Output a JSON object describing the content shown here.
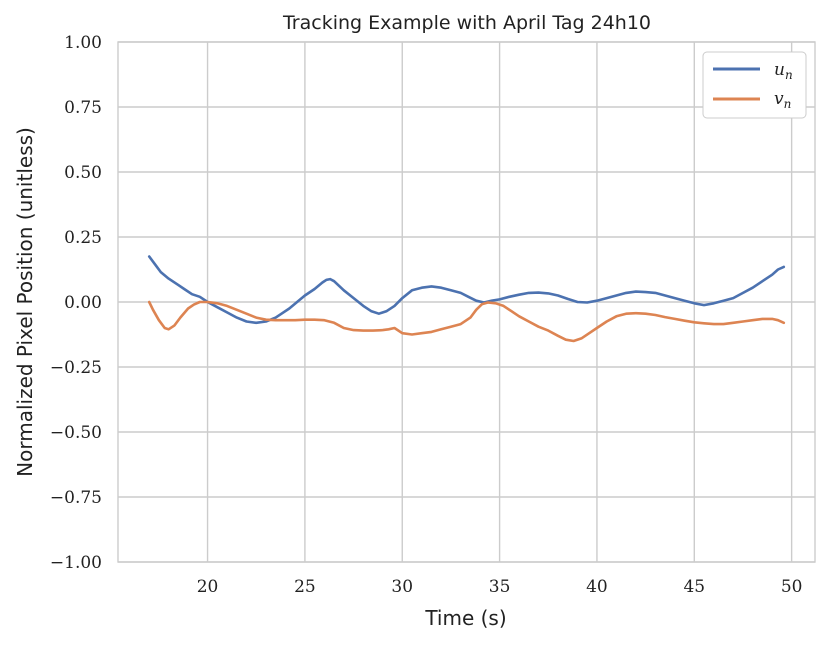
{
  "chart_data": {
    "type": "line",
    "title": "Tracking Example with April Tag 24h10",
    "xlabel": "Time (s)",
    "ylabel": "Normalized Pixel Position (unitless)",
    "xlim": [
      15.4,
      51.2
    ],
    "ylim": [
      -1.0,
      1.0
    ],
    "xticks": [
      20,
      25,
      30,
      35,
      40,
      45,
      50
    ],
    "yticks": [
      -1.0,
      -0.75,
      -0.5,
      -0.25,
      0.0,
      0.25,
      0.5,
      0.75,
      1.0
    ],
    "xtick_labels": [
      "20",
      "25",
      "30",
      "35",
      "40",
      "45",
      "50"
    ],
    "ytick_labels": [
      "−1.00",
      "−0.75",
      "−0.50",
      "−0.25",
      "0.00",
      "0.25",
      "0.50",
      "0.75",
      "1.00"
    ],
    "grid": true,
    "legend_position": "top-right",
    "series": [
      {
        "name": "u",
        "subscript": "n",
        "color": "#4c72b0",
        "x": [
          17.0,
          17.3,
          17.6,
          18.0,
          18.5,
          18.8,
          19.2,
          19.6,
          20.0,
          20.5,
          21.0,
          21.5,
          22.0,
          22.5,
          23.0,
          23.5,
          23.8,
          24.2,
          24.6,
          25.0,
          25.5,
          25.9,
          26.1,
          26.3,
          26.5,
          27.0,
          27.5,
          28.0,
          28.4,
          28.8,
          29.2,
          29.6,
          30.0,
          30.5,
          31.0,
          31.5,
          32.0,
          32.5,
          33.0,
          33.4,
          33.8,
          34.2,
          34.6,
          35.0,
          35.5,
          36.0,
          36.5,
          37.0,
          37.5,
          38.0,
          38.5,
          39.0,
          39.5,
          40.0,
          40.5,
          41.0,
          41.5,
          42.0,
          42.5,
          43.0,
          43.5,
          44.0,
          44.5,
          45.0,
          45.5,
          46.0,
          46.5,
          47.0,
          47.5,
          48.0,
          48.5,
          49.0,
          49.3,
          49.6
        ],
        "y": [
          0.175,
          0.145,
          0.115,
          0.09,
          0.065,
          0.05,
          0.03,
          0.02,
          0.0,
          -0.02,
          -0.04,
          -0.06,
          -0.075,
          -0.08,
          -0.075,
          -0.06,
          -0.045,
          -0.025,
          0.0,
          0.025,
          0.05,
          0.075,
          0.085,
          0.088,
          0.08,
          0.045,
          0.015,
          -0.015,
          -0.035,
          -0.045,
          -0.035,
          -0.015,
          0.015,
          0.045,
          0.055,
          0.06,
          0.055,
          0.045,
          0.035,
          0.02,
          0.005,
          -0.002,
          0.005,
          0.01,
          0.02,
          0.028,
          0.035,
          0.036,
          0.033,
          0.025,
          0.012,
          0.0,
          -0.002,
          0.005,
          0.015,
          0.025,
          0.035,
          0.04,
          0.038,
          0.035,
          0.025,
          0.015,
          0.005,
          -0.005,
          -0.012,
          -0.005,
          0.005,
          0.015,
          0.035,
          0.055,
          0.08,
          0.105,
          0.125,
          0.135
        ]
      },
      {
        "name": "v",
        "subscript": "n",
        "color": "#dd8452",
        "x": [
          17.0,
          17.2,
          17.5,
          17.8,
          18.0,
          18.3,
          18.6,
          19.0,
          19.3,
          19.6,
          20.0,
          20.5,
          21.0,
          21.5,
          22.0,
          22.5,
          23.0,
          23.5,
          24.0,
          24.5,
          25.0,
          25.5,
          26.0,
          26.5,
          27.0,
          27.5,
          28.0,
          28.5,
          29.0,
          29.3,
          29.6,
          30.0,
          30.5,
          31.0,
          31.5,
          32.0,
          32.5,
          33.0,
          33.5,
          33.8,
          34.1,
          34.4,
          34.8,
          35.2,
          35.6,
          36.0,
          36.5,
          37.0,
          37.5,
          38.0,
          38.4,
          38.8,
          39.2,
          39.6,
          40.0,
          40.5,
          41.0,
          41.5,
          42.0,
          42.5,
          43.0,
          43.5,
          44.0,
          44.5,
          45.0,
          45.5,
          46.0,
          46.5,
          47.0,
          47.5,
          48.0,
          48.5,
          49.0,
          49.3,
          49.6
        ],
        "y": [
          0.0,
          -0.03,
          -0.07,
          -0.1,
          -0.105,
          -0.09,
          -0.06,
          -0.025,
          -0.01,
          0.0,
          0.0,
          -0.005,
          -0.015,
          -0.03,
          -0.045,
          -0.06,
          -0.068,
          -0.07,
          -0.07,
          -0.07,
          -0.068,
          -0.068,
          -0.07,
          -0.08,
          -0.1,
          -0.108,
          -0.11,
          -0.11,
          -0.108,
          -0.105,
          -0.1,
          -0.12,
          -0.125,
          -0.12,
          -0.115,
          -0.105,
          -0.095,
          -0.085,
          -0.06,
          -0.03,
          -0.008,
          -0.002,
          -0.005,
          -0.015,
          -0.035,
          -0.055,
          -0.075,
          -0.095,
          -0.11,
          -0.13,
          -0.145,
          -0.15,
          -0.14,
          -0.12,
          -0.1,
          -0.075,
          -0.055,
          -0.045,
          -0.043,
          -0.045,
          -0.05,
          -0.058,
          -0.065,
          -0.072,
          -0.078,
          -0.082,
          -0.085,
          -0.085,
          -0.08,
          -0.075,
          -0.07,
          -0.065,
          -0.065,
          -0.07,
          -0.08
        ]
      }
    ]
  },
  "style": {
    "grid_color": "#cccccc",
    "background": "#ffffff",
    "text_color": "#222222"
  }
}
